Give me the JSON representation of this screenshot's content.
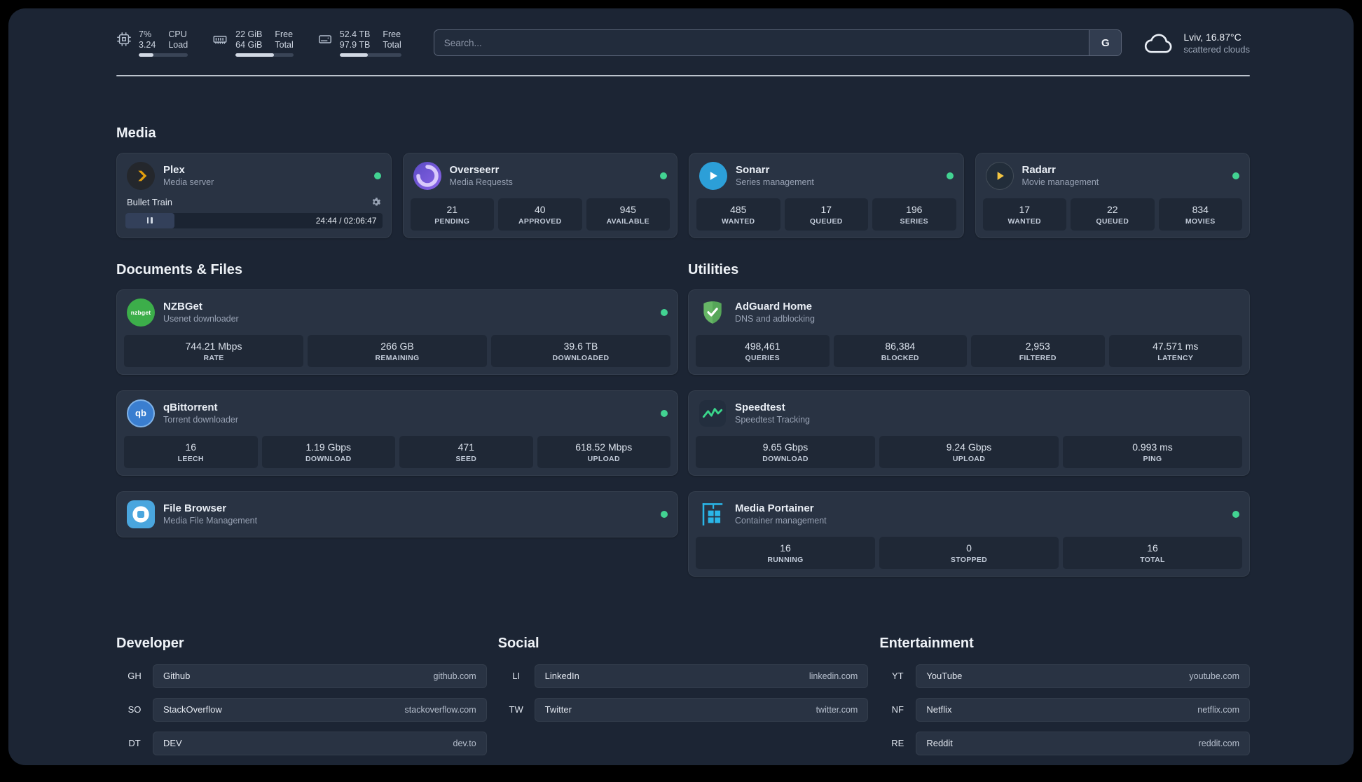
{
  "theme": {
    "background": "#1c2534",
    "card": "#293343",
    "tile": "#1f2836",
    "status_online": "#42d392",
    "plex_gold": "#e5a00d",
    "radarr_yellow": "#f4c542",
    "sonarr_blue": "#2c9fd8",
    "adguard_green": "#66b666",
    "portainer_blue": "#2ab6e8"
  },
  "topbar": {
    "resources": [
      {
        "rows": [
          {
            "value": "7%",
            "label": "CPU"
          },
          {
            "value": "3.24",
            "label": "Load"
          }
        ],
        "progress": 30
      },
      {
        "rows": [
          {
            "value": "22 GiB",
            "label": "Free"
          },
          {
            "value": "64 GiB",
            "label": "Total"
          }
        ],
        "progress": 66
      },
      {
        "rows": [
          {
            "value": "52.4 TB",
            "label": "Free"
          },
          {
            "value": "97.9 TB",
            "label": "Total"
          }
        ],
        "progress": 46
      }
    ],
    "search": {
      "placeholder": "Search...",
      "engine_label": "G"
    },
    "weather": {
      "location": "Lviv, 16.87°C",
      "condition": "scattered clouds"
    }
  },
  "icons": {
    "nzbget_label": "nzbget",
    "qbittorrent_label": "qb"
  },
  "sections": {
    "media": {
      "title": "Media",
      "cards": [
        {
          "name": "Plex",
          "desc": "Media server",
          "status": "online",
          "now_playing": {
            "title": "Bullet Train",
            "time": "24:44 / 02:06:47",
            "progress": 19
          }
        },
        {
          "name": "Overseerr",
          "desc": "Media Requests",
          "status": "online",
          "stats": [
            {
              "value": "21",
              "label": "PENDING"
            },
            {
              "value": "40",
              "label": "APPROVED"
            },
            {
              "value": "945",
              "label": "AVAILABLE"
            }
          ]
        },
        {
          "name": "Sonarr",
          "desc": "Series management",
          "status": "online",
          "stats": [
            {
              "value": "485",
              "label": "WANTED"
            },
            {
              "value": "17",
              "label": "QUEUED"
            },
            {
              "value": "196",
              "label": "SERIES"
            }
          ]
        },
        {
          "name": "Radarr",
          "desc": "Movie management",
          "status": "online",
          "stats": [
            {
              "value": "17",
              "label": "WANTED"
            },
            {
              "value": "22",
              "label": "QUEUED"
            },
            {
              "value": "834",
              "label": "MOVIES"
            }
          ]
        }
      ]
    },
    "documents": {
      "title": "Documents & Files",
      "cards": [
        {
          "name": "NZBGet",
          "desc": "Usenet downloader",
          "status": "online",
          "stats": [
            {
              "value": "744.21 Mbps",
              "label": "RATE"
            },
            {
              "value": "266 GB",
              "label": "REMAINING"
            },
            {
              "value": "39.6 TB",
              "label": "DOWNLOADED"
            }
          ]
        },
        {
          "name": "qBittorrent",
          "desc": "Torrent downloader",
          "status": "online",
          "stats": [
            {
              "value": "16",
              "label": "LEECH"
            },
            {
              "value": "1.19 Gbps",
              "label": "DOWNLOAD"
            },
            {
              "value": "471",
              "label": "SEED"
            },
            {
              "value": "618.52 Mbps",
              "label": "UPLOAD"
            }
          ]
        },
        {
          "name": "File Browser",
          "desc": "Media File Management",
          "status": "online"
        }
      ]
    },
    "utilities": {
      "title": "Utilities",
      "cards": [
        {
          "name": "AdGuard Home",
          "desc": "DNS and adblocking",
          "stats": [
            {
              "value": "498,461",
              "label": "QUERIES"
            },
            {
              "value": "86,384",
              "label": "BLOCKED"
            },
            {
              "value": "2,953",
              "label": "FILTERED"
            },
            {
              "value": "47.571 ms",
              "label": "LATENCY"
            }
          ]
        },
        {
          "name": "Speedtest",
          "desc": "Speedtest Tracking",
          "stats": [
            {
              "value": "9.65 Gbps",
              "label": "DOWNLOAD"
            },
            {
              "value": "9.24 Gbps",
              "label": "UPLOAD"
            },
            {
              "value": "0.993 ms",
              "label": "PING"
            }
          ]
        },
        {
          "name": "Media Portainer",
          "desc": "Container management",
          "status": "online",
          "stats": [
            {
              "value": "16",
              "label": "RUNNING"
            },
            {
              "value": "0",
              "label": "STOPPED"
            },
            {
              "value": "16",
              "label": "TOTAL"
            }
          ]
        }
      ]
    }
  },
  "bookmarks": {
    "groups": [
      {
        "title": "Developer",
        "items": [
          {
            "abbr": "GH",
            "name": "Github",
            "url": "github.com"
          },
          {
            "abbr": "SO",
            "name": "StackOverflow",
            "url": "stackoverflow.com"
          },
          {
            "abbr": "DT",
            "name": "DEV",
            "url": "dev.to"
          }
        ]
      },
      {
        "title": "Social",
        "items": [
          {
            "abbr": "LI",
            "name": "LinkedIn",
            "url": "linkedin.com"
          },
          {
            "abbr": "TW",
            "name": "Twitter",
            "url": "twitter.com"
          }
        ]
      },
      {
        "title": "Entertainment",
        "items": [
          {
            "abbr": "YT",
            "name": "YouTube",
            "url": "youtube.com"
          },
          {
            "abbr": "NF",
            "name": "Netflix",
            "url": "netflix.com"
          },
          {
            "abbr": "RE",
            "name": "Reddit",
            "url": "reddit.com"
          }
        ]
      }
    ]
  }
}
